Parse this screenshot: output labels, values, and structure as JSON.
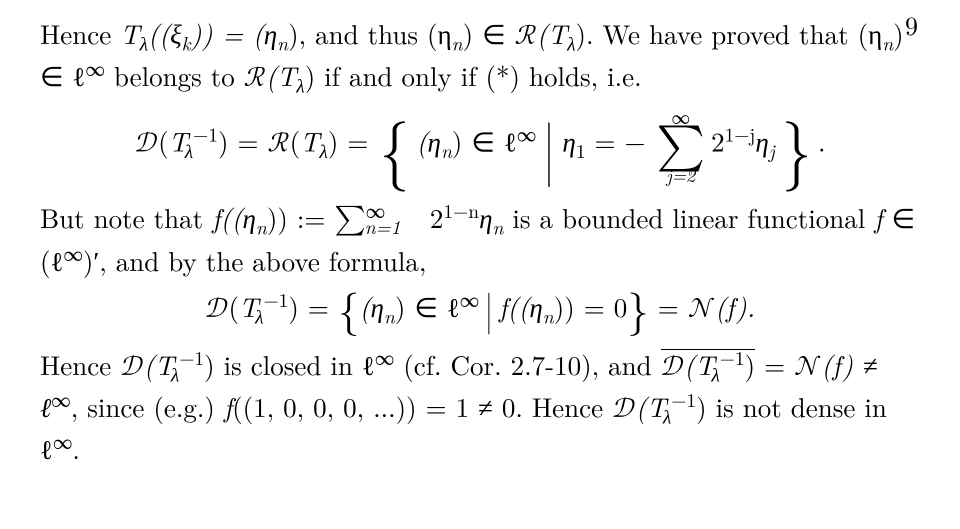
{
  "page_number": "9",
  "colors": {
    "text": "#000000",
    "background": "#ffffff"
  },
  "typography": {
    "body_fontsize_pt": 20,
    "font_family": "Computer Modern / Latin Modern Roman (serif)"
  },
  "para1_a": "Hence ",
  "para1_b": "T",
  "para1_b_sub": "λ",
  "para1_c": "((ξ",
  "para1_c_sub": "k",
  "para1_d": ")) = (η",
  "para1_d_sub": "n",
  "para1_e": "), and thus (η",
  "para1_e_sub": "n",
  "para1_f": ") ∈ ",
  "para1_g": "(T",
  "para1_g_sub": "λ",
  "para1_h": "). We have proved that (η",
  "para1_h_sub": "n",
  "para1_i": ") ∈ ℓ",
  "para1_i_sup": "∞",
  "para1_j": " belongs to ",
  "para1_k": "(T",
  "para1_k_sub": "λ",
  "para1_l": ") if and only if (*) holds, i.e.",
  "display1": {
    "D": "𝒟",
    "R": "ℛ",
    "Tlam_inv": "T",
    "Tlam_inv_sub": "λ",
    "Tlam_inv_sup": "−1",
    "eq1": ") = ",
    "Tlam": "T",
    "Tlam_sub": "λ",
    "eq2": ") = ",
    "eta_n": "(η",
    "eta_n_sub": "n",
    "post_eta": ") ∈ ℓ",
    "ellinf_sup": "∞",
    "cond_pre": "η",
    "cond_sub": "1",
    "cond_eq": " = − ",
    "sum_top": "∞",
    "sum_bot": "j=2",
    "term_a": "2",
    "term_sup": "1−j",
    "term_b": "η",
    "term_b_sub": "j",
    "dot": "."
  },
  "para2_a": "But note that ",
  "para2_b": "f",
  "para2_c": "((η",
  "para2_c_sub": "n",
  "para2_d": ")) := ",
  "para2_sum_top": "∞",
  "para2_sum_bot": "n=1",
  "para2_e": " 2",
  "para2_e_sup": "1−n",
  "para2_f": "η",
  "para2_f_sub": "n",
  "para2_g": " is a bounded linear functional ",
  "para2_h": "f",
  "para2_i": " ∈ (ℓ",
  "para2_i_sup": "∞",
  "para2_j": ")′, and by the above formula,",
  "display2": {
    "D": "𝒟",
    "Tlam_inv": "T",
    "Tlam_inv_sub": "λ",
    "Tlam_inv_sup": "−1",
    "eq1": ") = ",
    "eta_n": "(η",
    "eta_n_sub": "n",
    "post_eta": ") ∈ ℓ",
    "ellinf_sup": "∞",
    "f": "f",
    "f_arg_a": "((η",
    "f_arg_sub": "n",
    "f_arg_b": ")) = 0",
    "eq2": " = ",
    "N": "𝒩",
    "N_arg": "(f).",
    "open_paren": "(",
    "close_paren": ")"
  },
  "para3_a": "Hence ",
  "para3_D": "𝒟",
  "para3_b": "(T",
  "para3_b_sub": "λ",
  "para3_b_sup": "−1",
  "para3_c": ") is closed in ℓ",
  "para3_c_sup": "∞",
  "para3_d": " (cf. Cor. 2.7-10), and ",
  "para3_e_D": "𝒟",
  "para3_e": "(T",
  "para3_e_sub": "λ",
  "para3_e_sup": "−1",
  "para3_e2": ")",
  "para3_f": " = ",
  "para3_N": "𝒩",
  "para3_g": "(f) ≠ ℓ",
  "para3_g_sup": "∞",
  "para3_h": ", since (e.g.) ",
  "para3_i": "f",
  "para3_j": "((1, 0, 0, 0, ...)) = 1 ≠ 0. Hence ",
  "para3_k_D": "𝒟",
  "para3_k": "(T",
  "para3_k_sub": "λ",
  "para3_k_sup": "−1",
  "para3_l": ") is not dense in ℓ",
  "para3_l_sup": "∞",
  "para3_m": "."
}
